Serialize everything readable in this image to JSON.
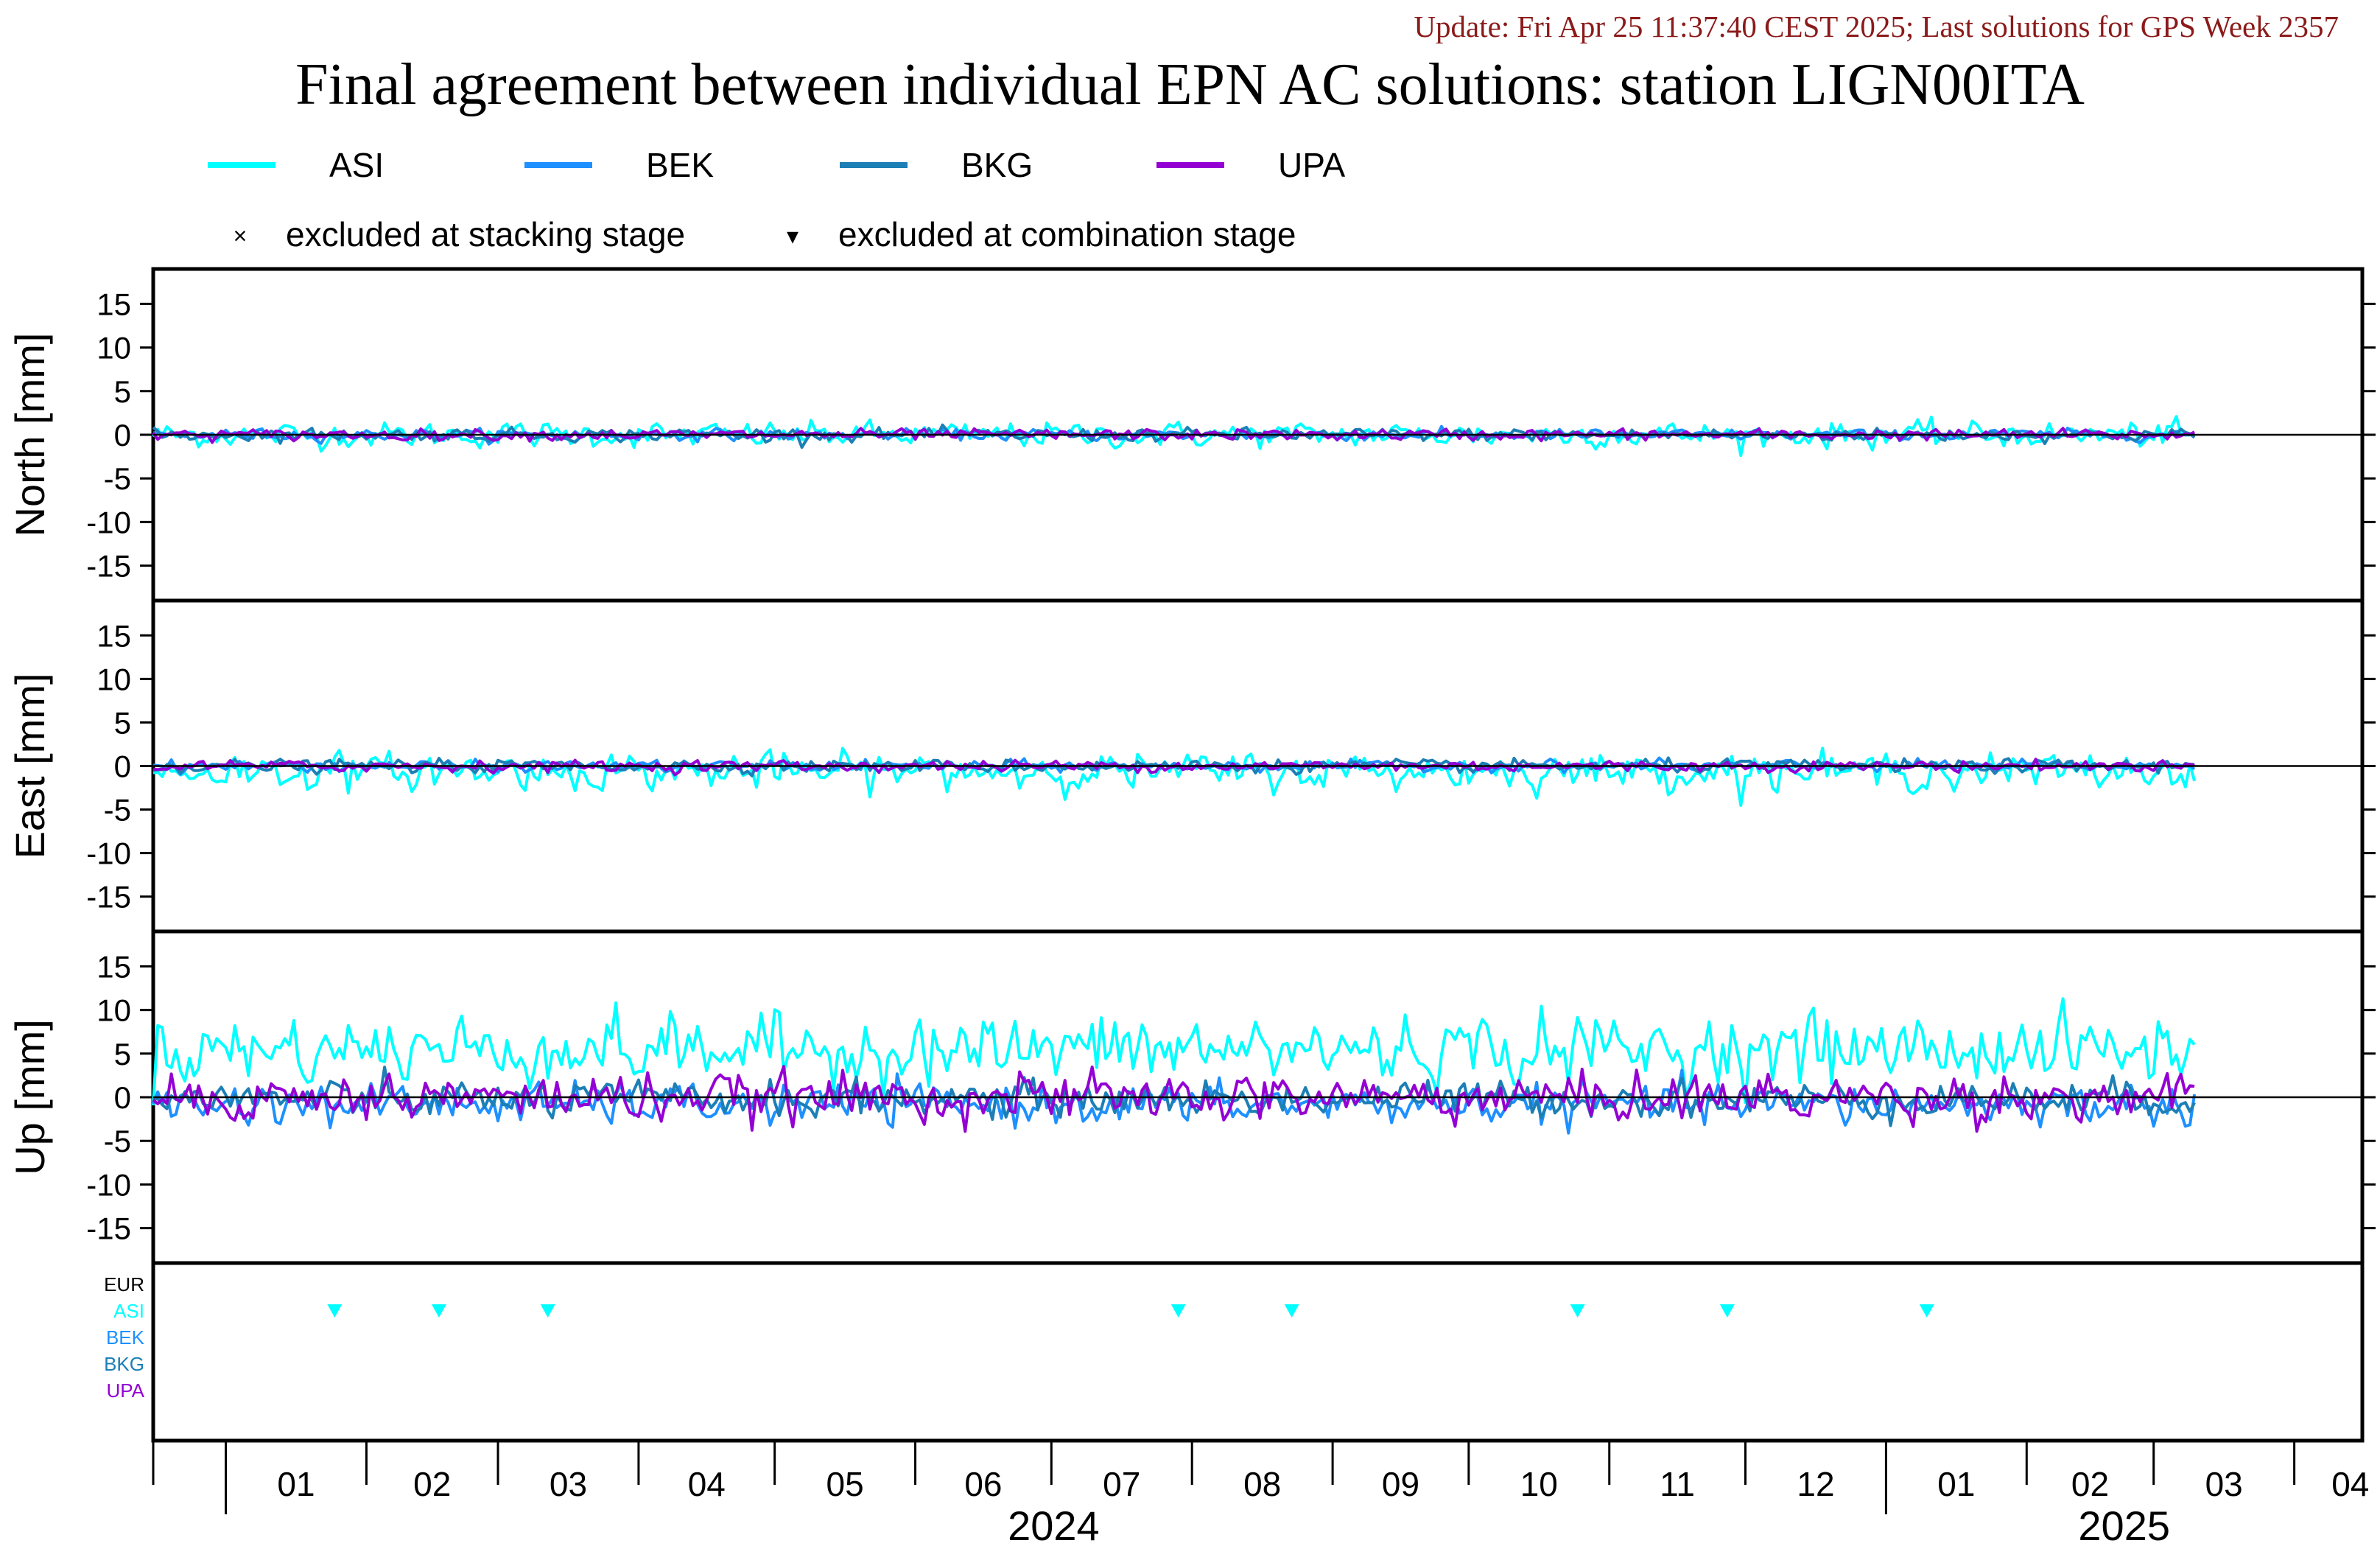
{
  "update_text": "Update: Fri Apr 25 11:37:40 CEST 2025; Last solutions for GPS Week 2357",
  "title": "Final agreement between individual EPN AC solutions: station LIGN00ITA",
  "legend": {
    "items": [
      {
        "name": "ASI",
        "color": "#00ffff"
      },
      {
        "name": "BEK",
        "color": "#1e90ff"
      },
      {
        "name": "BKG",
        "color": "#1c7fb5"
      },
      {
        "name": "UPA",
        "color": "#9400d3"
      }
    ],
    "markers": [
      {
        "symbol": "×",
        "label": "excluded at stacking stage"
      },
      {
        "symbol": "▾",
        "label": "excluded at combination stage"
      }
    ]
  },
  "chart_data": {
    "type": "line",
    "x_range": [
      "2023-12-16",
      "2025-04-16"
    ],
    "months": [
      "01",
      "02",
      "03",
      "04",
      "05",
      "06",
      "07",
      "08",
      "09",
      "10",
      "11",
      "12",
      "01",
      "02",
      "03",
      "04"
    ],
    "years": [
      "2024",
      "2025"
    ],
    "data_start": "2023-12-16",
    "data_end": "2025-03-10",
    "panels": [
      {
        "ylabel": "North [mm]",
        "ylim": [
          -19,
          19
        ],
        "ticks": [
          15,
          10,
          5,
          0,
          -5,
          -10,
          -15
        ],
        "series": [
          {
            "name": "ASI",
            "mean": 0.0,
            "noise": 0.7
          },
          {
            "name": "BEK",
            "mean": 0.0,
            "noise": 0.3
          },
          {
            "name": "BKG",
            "mean": 0.0,
            "noise": 0.35
          },
          {
            "name": "UPA",
            "mean": 0.0,
            "noise": 0.3
          }
        ]
      },
      {
        "ylabel": "East [mm]",
        "ylim": [
          -19,
          19
        ],
        "ticks": [
          15,
          10,
          5,
          0,
          -5,
          -10,
          -15
        ],
        "series": [
          {
            "name": "ASI",
            "mean": -0.6,
            "noise": 1.0
          },
          {
            "name": "BEK",
            "mean": 0.0,
            "noise": 0.3
          },
          {
            "name": "BKG",
            "mean": 0.0,
            "noise": 0.35
          },
          {
            "name": "UPA",
            "mean": 0.0,
            "noise": 0.3
          }
        ]
      },
      {
        "ylabel": "Up [mm]",
        "ylim": [
          -19,
          19
        ],
        "ticks": [
          15,
          10,
          5,
          0,
          -5,
          -10,
          -15
        ],
        "series": [
          {
            "name": "ASI",
            "mean": 5.5,
            "noise": 1.9
          },
          {
            "name": "BEK",
            "mean": -0.8,
            "noise": 1.1
          },
          {
            "name": "BKG",
            "mean": -0.2,
            "noise": 1.0
          },
          {
            "name": "UPA",
            "mean": 0.0,
            "noise": 1.3
          }
        ]
      }
    ],
    "exclusion_panel": {
      "labels": [
        {
          "name": "EUR",
          "color": "#000000"
        },
        {
          "name": "ASI",
          "color": "#00ffff"
        },
        {
          "name": "BEK",
          "color": "#1e90ff"
        },
        {
          "name": "BKG",
          "color": "#1c7fb5"
        },
        {
          "name": "UPA",
          "color": "#9400d3"
        }
      ],
      "combination_excluded": [
        {
          "ac": "ASI",
          "date": "2024-01-25"
        },
        {
          "ac": "ASI",
          "date": "2024-02-17"
        },
        {
          "ac": "ASI",
          "date": "2024-03-12"
        },
        {
          "ac": "ASI",
          "date": "2024-07-29"
        },
        {
          "ac": "ASI",
          "date": "2024-08-23"
        },
        {
          "ac": "ASI",
          "date": "2024-10-25"
        },
        {
          "ac": "ASI",
          "date": "2024-11-27"
        },
        {
          "ac": "ASI",
          "date": "2025-01-10"
        }
      ]
    }
  }
}
